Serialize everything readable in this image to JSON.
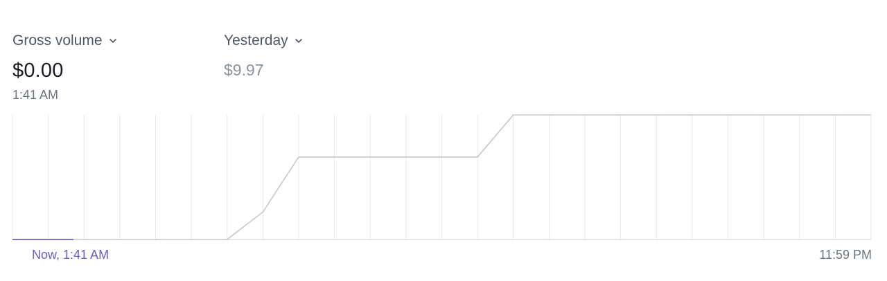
{
  "metric": {
    "label": "Gross volume",
    "value": "$0.00",
    "time": "1:41 AM"
  },
  "comparison": {
    "label": "Yesterday",
    "value": "$9.97"
  },
  "chart_data": {
    "type": "line",
    "x_labels": {
      "start": "Now, 1:41 AM",
      "end": "11:59 PM"
    },
    "x": [
      0,
      1,
      2,
      3,
      4,
      5,
      6,
      7,
      8,
      9,
      10,
      11,
      12,
      13,
      14,
      15,
      16,
      17,
      18,
      19,
      20,
      21,
      22,
      23,
      24
    ],
    "series": [
      {
        "role": "today",
        "color": "#7a73c9",
        "x": [
          0,
          1.7
        ],
        "values": [
          0,
          0
        ]
      },
      {
        "role": "yesterday",
        "color": "#c3c8d0",
        "x": [
          0,
          1,
          2,
          3,
          4,
          5,
          6,
          7,
          8,
          9,
          10,
          11,
          12,
          13,
          14,
          15,
          16,
          17,
          18,
          19,
          20,
          21,
          22,
          23,
          24
        ],
        "values": [
          0,
          0,
          0,
          0,
          0,
          0,
          0,
          2.2,
          6.6,
          6.6,
          6.6,
          6.6,
          6.6,
          6.6,
          9.97,
          9.97,
          9.97,
          9.97,
          9.97,
          9.97,
          9.97,
          9.97,
          9.97,
          9.97,
          9.97
        ]
      }
    ],
    "ylim": [
      0,
      9.97
    ],
    "xlim": [
      0,
      24
    ],
    "grid": true,
    "colors": {
      "grid": "#e6e8eb",
      "baseline": "#c9cdd4"
    }
  }
}
